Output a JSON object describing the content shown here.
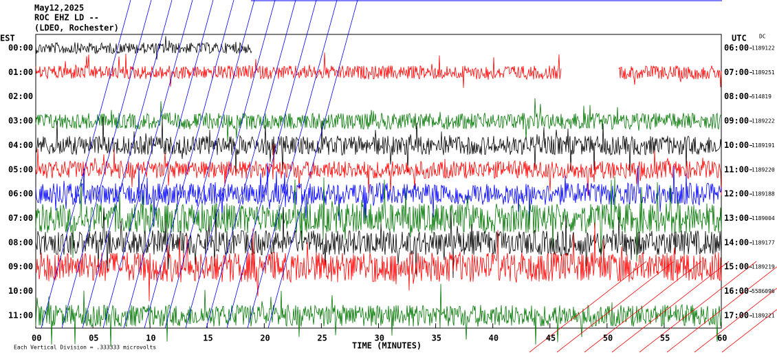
{
  "header": {
    "date": "May12,2025",
    "station": "ROC EHZ LD --",
    "network": "(LDEO, Rochester)"
  },
  "left_zone": "EST",
  "right_zone": "UTC",
  "dc_label": "DC",
  "rows": [
    {
      "est": "00:00",
      "utc": "06:00",
      "dc": "1189122"
    },
    {
      "est": "01:00",
      "utc": "07:00",
      "dc": "1189251"
    },
    {
      "est": "02:00",
      "utc": "08:00",
      "dc": "514819"
    },
    {
      "est": "03:00",
      "utc": "09:00",
      "dc": "1189222"
    },
    {
      "est": "04:00",
      "utc": "10:00",
      "dc": "1189191"
    },
    {
      "est": "05:00",
      "utc": "11:00",
      "dc": "1189220"
    },
    {
      "est": "06:00",
      "utc": "12:00",
      "dc": "1189188"
    },
    {
      "est": "07:00",
      "utc": "13:00",
      "dc": "1189004"
    },
    {
      "est": "08:00",
      "utc": "14:00",
      "dc": "1189177"
    },
    {
      "est": "09:00",
      "utc": "15:00",
      "dc": "1189219"
    },
    {
      "est": "10:00",
      "utc": "16:00",
      "dc": "5586096"
    },
    {
      "est": "11:00",
      "utc": "17:00",
      "dc": "1189221"
    }
  ],
  "x_ticks": [
    "00",
    "05",
    "10",
    "15",
    "20",
    "25",
    "30",
    "35",
    "40",
    "45",
    "50",
    "55",
    "60"
  ],
  "x_label": "TIME (MINUTES)",
  "footer": "Each Vertical Division = .333333 microvolts"
}
